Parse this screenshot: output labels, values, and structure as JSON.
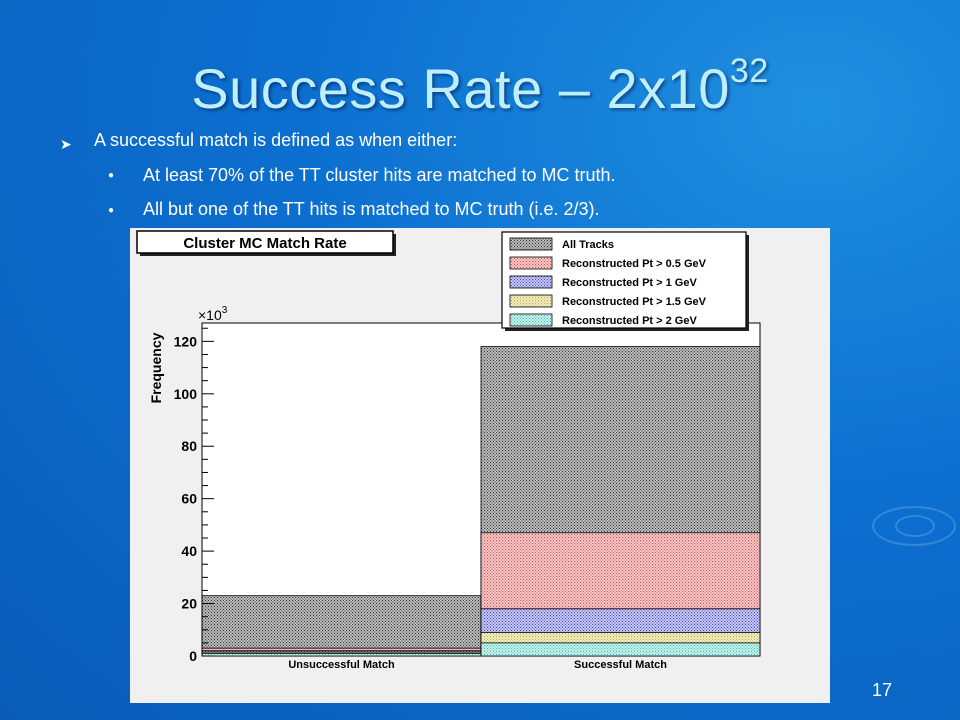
{
  "slide": {
    "title_main": "Success Rate – 2x10",
    "title_sup": "32",
    "bullet_main": "A successful match is defined as when either:",
    "sub_bullets": [
      "At least 70% of the TT cluster hits are matched to MC truth.",
      "All but one of the TT hits is matched to MC truth (i.e. 2/3)."
    ],
    "page_number": "17",
    "colors": {
      "background": "#0c6fd0",
      "title": "#bfefff",
      "text": "#ffffff"
    }
  },
  "chart_data": {
    "type": "bar",
    "title": "Cluster MC Match Rate",
    "ylabel": "Frequency",
    "y_multiplier": "×10",
    "y_multiplier_exp": "3",
    "ylim": [
      0,
      127
    ],
    "yticks": [
      0,
      20,
      40,
      60,
      80,
      100,
      120
    ],
    "categories": [
      "Unsuccessful Match",
      "Successful Match"
    ],
    "legend_position": "top-right",
    "series": [
      {
        "name": "All Tracks",
        "values": [
          23,
          118
        ],
        "color": "#bbbbbb",
        "pattern": "dots-dark"
      },
      {
        "name": "Reconstructed Pt > 0.5 GeV",
        "values": [
          3,
          47
        ],
        "color": "#f6c8c8",
        "pattern": "dots-red"
      },
      {
        "name": "Reconstructed Pt > 1 GeV",
        "values": [
          2,
          18
        ],
        "color": "#c6c8f2",
        "pattern": "dots-blue"
      },
      {
        "name": "Reconstructed Pt > 1.5 GeV",
        "values": [
          1.5,
          9
        ],
        "color": "#f4f0c6",
        "pattern": "dots-yellow"
      },
      {
        "name": "Reconstructed Pt > 2 GeV",
        "values": [
          1,
          5
        ],
        "color": "#c8f2ee",
        "pattern": "dots-cyan"
      }
    ]
  }
}
